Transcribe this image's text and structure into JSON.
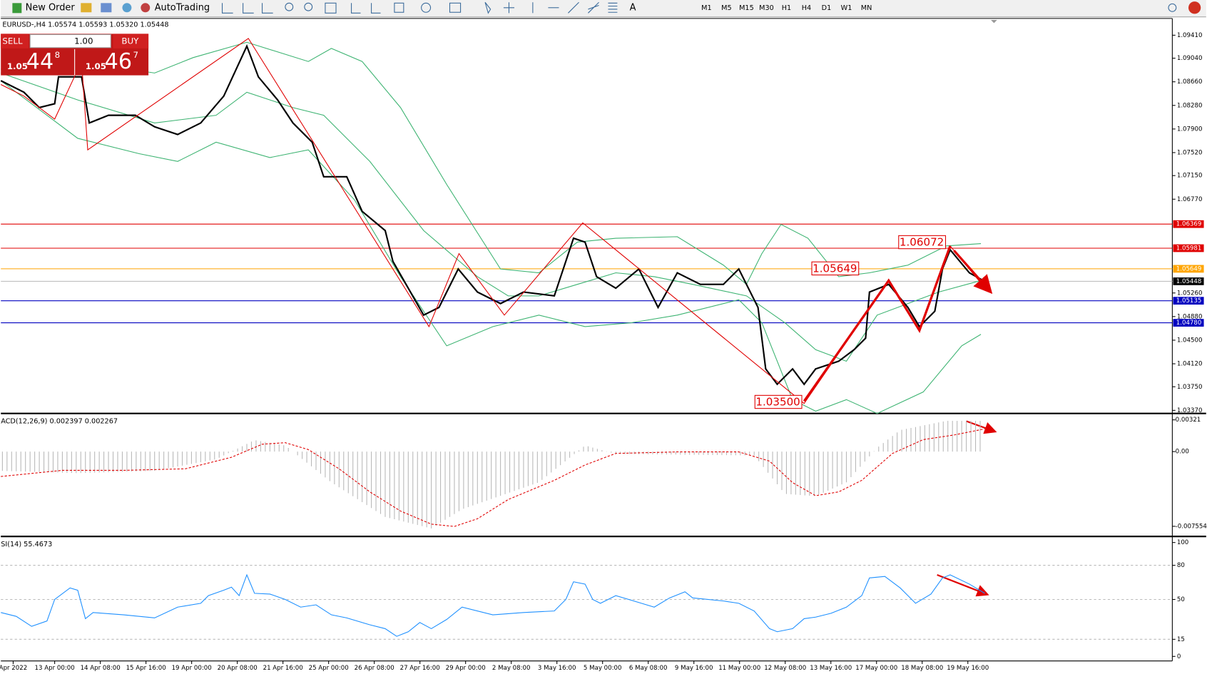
{
  "toolbar": {
    "new_order": "New Order",
    "auto_trading": "AutoTrading",
    "timeframes": [
      "M1",
      "M5",
      "M15",
      "M30",
      "H1",
      "H4",
      "D1",
      "W1",
      "MN"
    ]
  },
  "one_click": {
    "sell": "SELL",
    "buy": "BUY",
    "volume": "1.00",
    "bid_big": "1.05",
    "bid_pips": "44",
    "bid_frac": "8",
    "ask_big": "1.05",
    "ask_pips": "46",
    "ask_frac": "7"
  },
  "chart": {
    "header": "EURUSD-,H4  1.05574 1.05593 1.05320 1.05448",
    "ylim": [
      1.0332,
      1.0968
    ],
    "yticks": [
      {
        "value": 1.0941,
        "label": "1.09410"
      },
      {
        "value": 1.0904,
        "label": "1.09040"
      },
      {
        "value": 1.0866,
        "label": "1.08660"
      },
      {
        "value": 1.0828,
        "label": "1.08280"
      },
      {
        "value": 1.079,
        "label": "1.07900"
      },
      {
        "value": 1.0752,
        "label": "1.07520"
      },
      {
        "value": 1.0715,
        "label": "1.07150"
      },
      {
        "value": 1.0677,
        "label": "1.06770"
      },
      {
        "value": 1.0526,
        "label": "1.05260"
      },
      {
        "value": 1.0488,
        "label": "1.04880"
      },
      {
        "value": 1.045,
        "label": "1.04500"
      },
      {
        "value": 1.0412,
        "label": "1.04120"
      },
      {
        "value": 1.0375,
        "label": "1.03750"
      },
      {
        "value": 1.0337,
        "label": "1.03370"
      }
    ],
    "levels": [
      {
        "value": 1.06369,
        "label": "1.06369",
        "color": "#e00000"
      },
      {
        "value": 1.05981,
        "label": "1.05981",
        "color": "#e00000"
      },
      {
        "value": 1.05649,
        "label": "1.05649",
        "color": "#ffa500"
      },
      {
        "value": 1.05448,
        "label": "1.05448",
        "color": "#000000"
      },
      {
        "value": 1.05135,
        "label": "1.05135",
        "color": "#0000c0"
      },
      {
        "value": 1.0478,
        "label": "1.04780",
        "color": "#0000c0"
      }
    ],
    "annotations": [
      {
        "value": 1.06072,
        "label": "1.06072"
      },
      {
        "value": 1.05649,
        "label": "1.05649"
      },
      {
        "value": 1.035,
        "label": "1.03500"
      }
    ]
  },
  "macd": {
    "label": "ACD(12,26,9) 0.002397 0.002267",
    "ylim": [
      -0.0085,
      0.0037
    ],
    "yticks": [
      {
        "value": 0.00321,
        "label": "0.00321"
      },
      {
        "value": 0,
        "label": "0.00"
      },
      {
        "value": -0.007554,
        "label": "-0.007554"
      }
    ]
  },
  "rsi": {
    "label": "SI(14) 55.4673",
    "ylim": [
      -4,
      104
    ],
    "yticks": [
      100,
      80,
      50,
      15,
      0
    ]
  },
  "dates": [
    "Apr 2022",
    "13 Apr 00:00",
    "14 Apr 08:00",
    "15 Apr 16:00",
    "19 Apr 00:00",
    "20 Apr 08:00",
    "21 Apr 16:00",
    "25 Apr 00:00",
    "26 Apr 08:00",
    "27 Apr 16:00",
    "29 Apr 00:00",
    "2 May 08:00",
    "3 May 16:00",
    "5 May 00:00",
    "6 May 08:00",
    "9 May 16:00",
    "11 May 00:00",
    "12 May 08:00",
    "13 May 16:00",
    "17 May 00:00",
    "18 May 08:00",
    "19 May 16:00"
  ]
}
